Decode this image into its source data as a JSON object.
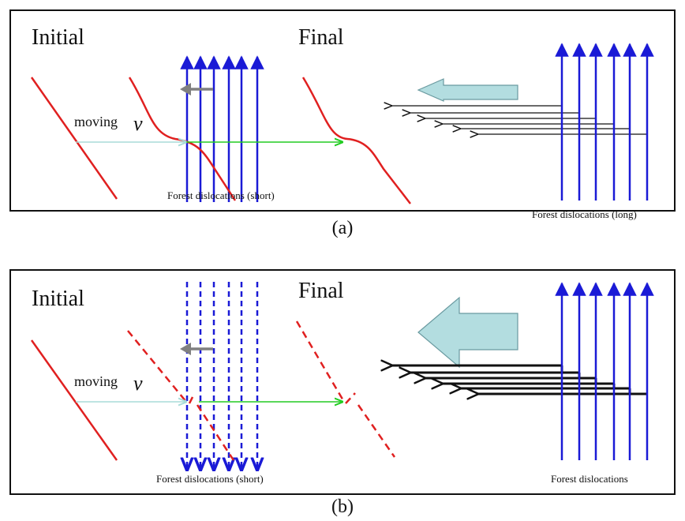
{
  "panel_a": {
    "initial_label": "Initial",
    "final_label": "Final",
    "moving_label": "moving",
    "velocity_symbol": "v",
    "forest_short_label": "Forest dislocations (short)",
    "forest_long_label": "Forest dislocations (long)"
  },
  "panel_b": {
    "initial_label": "Initial",
    "final_label": "Final",
    "moving_label": "moving",
    "velocity_symbol": "v",
    "forest_short_label": "Forest dislocations (short)",
    "forest_right_label": "Forest dislocations"
  },
  "captions": {
    "a": "(a)",
    "b": "(b)"
  },
  "colors": {
    "dislocation_red": "#e02020",
    "forest_blue": "#1a1ad6",
    "motion_green": "#22cc22",
    "motion_faint": "#a8dcd8",
    "grey_arrow": "#808080",
    "block_arrow_fill": "#b3dde0",
    "block_arrow_stroke": "#6a9aa0",
    "black": "#111111"
  }
}
